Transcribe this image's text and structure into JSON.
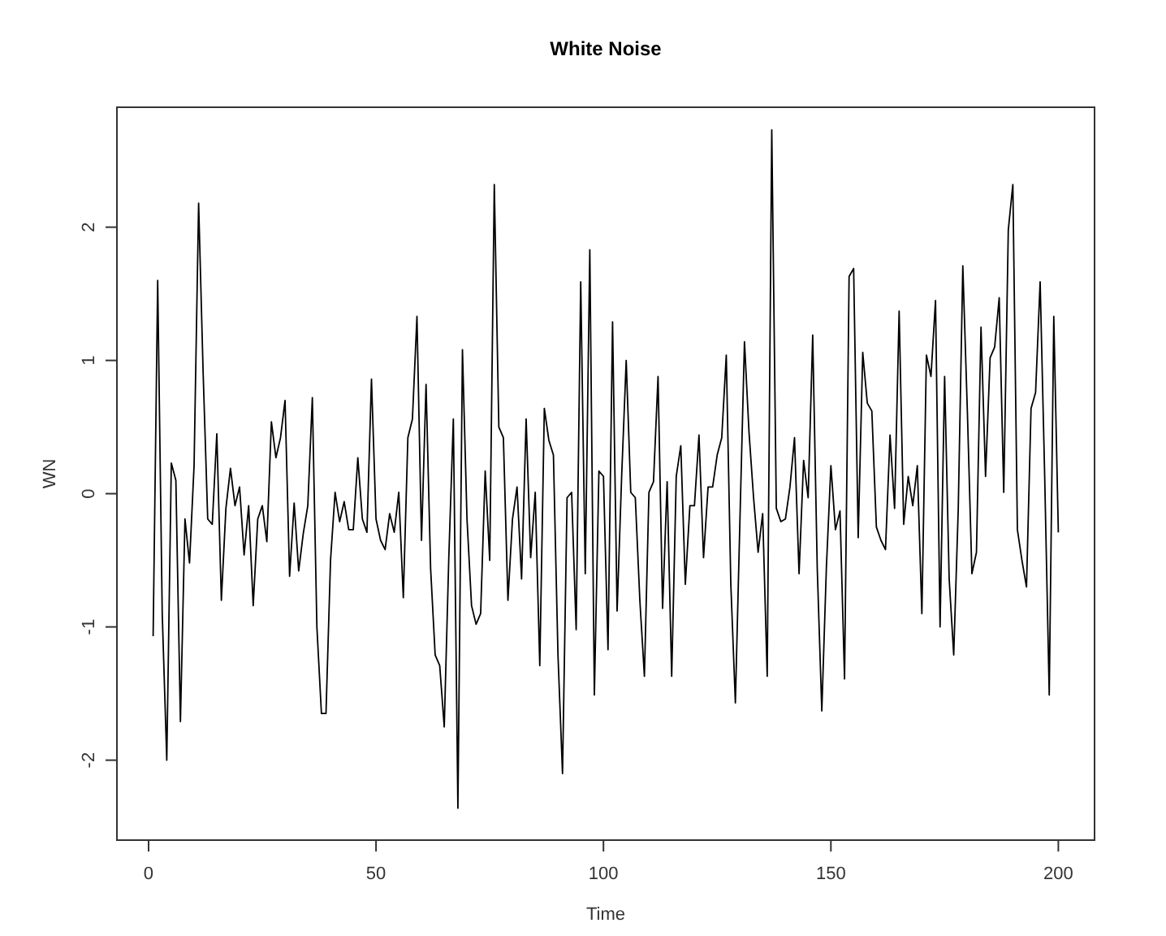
{
  "chart_data": {
    "type": "line",
    "title": "White Noise",
    "xlabel": "Time",
    "ylabel": "WN",
    "xlim": [
      -6.96,
      207.96
    ],
    "xticks": [
      0,
      50,
      100,
      150,
      200
    ],
    "ylim": [
      -2.6,
      2.9
    ],
    "yticks": [
      -2,
      -1,
      0,
      1,
      2
    ],
    "grid": false,
    "marker": "none",
    "line_style": "solid",
    "x": [
      1,
      2,
      3,
      4,
      5,
      6,
      7,
      8,
      9,
      10,
      11,
      12,
      13,
      14,
      15,
      16,
      17,
      18,
      19,
      20,
      21,
      22,
      23,
      24,
      25,
      26,
      27,
      28,
      29,
      30,
      31,
      32,
      33,
      34,
      35,
      36,
      37,
      38,
      39,
      40,
      41,
      42,
      43,
      44,
      45,
      46,
      47,
      48,
      49,
      50,
      51,
      52,
      53,
      54,
      55,
      56,
      57,
      58,
      59,
      60,
      61,
      62,
      63,
      64,
      65,
      66,
      67,
      68,
      69,
      70,
      71,
      72,
      73,
      74,
      75,
      76,
      77,
      78,
      79,
      80,
      81,
      82,
      83,
      84,
      85,
      86,
      87,
      88,
      89,
      90,
      91,
      92,
      93,
      94,
      95,
      96,
      97,
      98,
      99,
      100,
      101,
      102,
      103,
      104,
      105,
      106,
      107,
      108,
      109,
      110,
      111,
      112,
      113,
      114,
      115,
      116,
      117,
      118,
      119,
      120,
      121,
      122,
      123,
      124,
      125,
      126,
      127,
      128,
      129,
      130,
      131,
      132,
      133,
      134,
      135,
      136,
      137,
      138,
      139,
      140,
      141,
      142,
      143,
      144,
      145,
      146,
      147,
      148,
      149,
      150,
      151,
      152,
      153,
      154,
      155,
      156,
      157,
      158,
      159,
      160,
      161,
      162,
      163,
      164,
      165,
      166,
      167,
      168,
      169,
      170,
      171,
      172,
      173,
      174,
      175,
      176,
      177,
      178,
      179,
      180,
      181,
      182,
      183,
      184,
      185,
      186,
      187,
      188,
      189,
      190,
      191,
      192,
      193,
      194,
      195,
      196,
      197,
      198,
      199,
      200
    ],
    "series": [
      {
        "color": "#000000",
        "values": [
          -1.07,
          1.6,
          -0.9,
          -2.0,
          0.23,
          0.1,
          -1.71,
          -0.19,
          -0.52,
          0.21,
          2.18,
          0.9,
          -0.19,
          -0.23,
          0.45,
          -0.8,
          -0.11,
          0.19,
          -0.09,
          0.05,
          -0.46,
          -0.09,
          -0.84,
          -0.19,
          -0.09,
          -0.36,
          0.54,
          0.27,
          0.42,
          0.7,
          -0.62,
          -0.07,
          -0.58,
          -0.3,
          -0.09,
          0.72,
          -1.0,
          -1.65,
          -1.65,
          -0.5,
          0.01,
          -0.21,
          -0.06,
          -0.27,
          -0.27,
          0.27,
          -0.19,
          -0.29,
          0.86,
          -0.19,
          -0.35,
          -0.42,
          -0.15,
          -0.29,
          0.01,
          -0.78,
          0.42,
          0.56,
          1.33,
          -0.35,
          0.82,
          -0.56,
          -1.21,
          -1.29,
          -1.75,
          -0.48,
          0.56,
          -2.36,
          1.08,
          -0.19,
          -0.84,
          -0.98,
          -0.9,
          0.17,
          -0.5,
          2.32,
          0.5,
          0.42,
          -0.8,
          -0.19,
          0.05,
          -0.64,
          0.56,
          -0.48,
          0.01,
          -1.29,
          0.64,
          0.4,
          0.29,
          -1.21,
          -2.1,
          -0.03,
          0.01,
          -1.02,
          1.59,
          -0.6,
          1.83,
          -1.51,
          0.17,
          0.13,
          -1.17,
          1.29,
          -0.88,
          0.13,
          1.0,
          0.01,
          -0.03,
          -0.8,
          -1.37,
          0.01,
          0.09,
          0.88,
          -0.86,
          0.09,
          -1.37,
          0.13,
          0.36,
          -0.68,
          -0.09,
          -0.09,
          0.44,
          -0.48,
          0.05,
          0.05,
          0.29,
          0.42,
          1.04,
          -0.68,
          -1.57,
          -0.2,
          1.14,
          0.46,
          -0.03,
          -0.44,
          -0.15,
          -1.37,
          2.73,
          -0.11,
          -0.21,
          -0.19,
          0.05,
          0.42,
          -0.6,
          0.25,
          -0.03,
          1.19,
          -0.56,
          -1.63,
          -0.56,
          0.21,
          -0.27,
          -0.13,
          -1.39,
          1.63,
          1.69,
          -0.33,
          1.06,
          0.68,
          0.62,
          -0.25,
          -0.35,
          -0.42,
          0.44,
          -0.11,
          1.37,
          -0.23,
          0.13,
          -0.09,
          0.21,
          -0.9,
          1.04,
          0.88,
          1.45,
          -1.0,
          0.88,
          -0.64,
          -1.21,
          -0.11,
          1.71,
          0.62,
          -0.6,
          -0.44,
          1.25,
          0.13,
          1.02,
          1.1,
          1.47,
          0.01,
          1.98,
          2.32,
          -0.27,
          -0.5,
          -0.7,
          0.64,
          0.76,
          1.59,
          0.13,
          -1.51,
          1.33,
          -0.29
        ]
      }
    ]
  }
}
